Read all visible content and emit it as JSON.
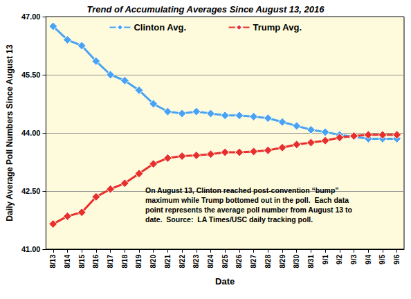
{
  "chart_data": {
    "type": "line",
    "title": "Trend of Accumulating Averages Since August 13, 2016",
    "x_label": "Date",
    "y_label": "Daily Average Poll Numbers Since August 13",
    "annotation": "On August 13, Clinton reached post-convention “bump”\nmaximum while Trump bottomed out in the poll.  Each data\npoint represents the average poll number from August 13 to\ndate.  Source:  LA Times/USC daily tracking poll.",
    "categories": [
      "8/13",
      "8/14",
      "8/15",
      "8/16",
      "8/17",
      "8/18",
      "8/19",
      "8/20",
      "8/21",
      "8/22",
      "8/23",
      "8/24",
      "8/25",
      "8/26",
      "8/27",
      "8/28",
      "8/29",
      "8/30",
      "8/31",
      "9/1",
      "9/2",
      "9/3",
      "9/4",
      "9/5",
      "9/6"
    ],
    "series": [
      {
        "name": "Clinton Avg.",
        "color": "#4aa3f0",
        "marker": "diamond",
        "line_style": "solid",
        "values": [
          46.75,
          46.4,
          46.25,
          45.85,
          45.5,
          45.35,
          45.1,
          44.75,
          44.55,
          44.5,
          44.55,
          44.5,
          44.45,
          44.45,
          44.42,
          44.38,
          44.28,
          44.18,
          44.08,
          44.02,
          43.95,
          43.9,
          43.85,
          43.85,
          43.85
        ]
      },
      {
        "name": "Trump Avg.",
        "color": "#e8302a",
        "marker": "diamond",
        "line_style": "solid",
        "values": [
          41.65,
          41.85,
          41.95,
          42.35,
          42.55,
          42.7,
          42.95,
          43.2,
          43.35,
          43.4,
          43.42,
          43.45,
          43.5,
          43.5,
          43.52,
          43.55,
          43.62,
          43.7,
          43.75,
          43.8,
          43.88,
          43.92,
          43.95,
          43.95,
          43.95
        ]
      }
    ],
    "ylim": [
      41,
      47
    ],
    "yticks": [
      {
        "value": 41,
        "label": "41.00"
      },
      {
        "value": 42.5,
        "label": "42.50"
      },
      {
        "value": 44,
        "label": "44.00"
      },
      {
        "value": 45.5,
        "label": "45.50"
      },
      {
        "value": 47,
        "label": "47.00"
      }
    ],
    "grid": true,
    "legend": "top"
  }
}
